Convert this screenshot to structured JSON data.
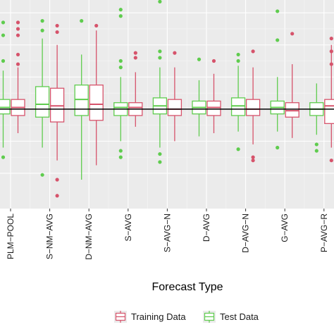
{
  "chart_data": {
    "type": "box",
    "title": "",
    "xlabel": "Forecast Type",
    "ylabel": "",
    "ylim": [
      -3.1,
      3.4
    ],
    "grid": true,
    "background": "#ebebeb",
    "reference_line": 0,
    "categories": [
      "PLM−POOL",
      "S−NM−AVG",
      "D−NM−AVG",
      "S−AVG",
      "S−AVG−N",
      "D−AVG",
      "D−AVG−N",
      "G−AVG",
      "P−AVG−R"
    ],
    "legend_position": "bottom",
    "series": [
      {
        "name": "Training Data",
        "color": "#d6536b",
        "boxes": [
          {
            "q1": -0.2,
            "median": 0.05,
            "q3": 0.3,
            "whisker_low": -0.75,
            "whisker_high": 1.3,
            "outliers": [
              2.7,
              2.5,
              2.3,
              1.7,
              1.4
            ]
          },
          {
            "q1": -0.4,
            "median": 0.1,
            "q3": 0.65,
            "whisker_low": -1.6,
            "whisker_high": 2.0,
            "outliers": [
              2.6,
              2.4,
              -2.2,
              -2.7
            ]
          },
          {
            "q1": -0.35,
            "median": 0.15,
            "q3": 0.75,
            "whisker_low": -1.75,
            "whisker_high": 2.45,
            "outliers": [
              2.6
            ]
          },
          {
            "q1": -0.2,
            "median": 0.05,
            "q3": 0.2,
            "whisker_low": -0.55,
            "whisker_high": 1.15,
            "outliers": [
              1.75,
              1.6
            ]
          },
          {
            "q1": -0.2,
            "median": 0.0,
            "q3": 0.3,
            "whisker_low": -1.0,
            "whisker_high": 1.3,
            "outliers": [
              1.75
            ]
          },
          {
            "q1": -0.2,
            "median": 0.05,
            "q3": 0.25,
            "whisker_low": -0.75,
            "whisker_high": 1.1,
            "outliers": [
              1.5
            ]
          },
          {
            "q1": -0.2,
            "median": 0.0,
            "q3": 0.3,
            "whisker_low": -1.1,
            "whisker_high": 1.3,
            "outliers": [
              1.8,
              -1.5,
              -1.6
            ]
          },
          {
            "q1": -0.25,
            "median": -0.05,
            "q3": 0.2,
            "whisker_low": -0.9,
            "whisker_high": 1.4,
            "outliers": [
              2.35
            ]
          },
          {
            "q1": -0.45,
            "median": 0.1,
            "q3": 0.3,
            "whisker_low": -1.2,
            "whisker_high": 2.0,
            "outliers": [
              2.2,
              1.8,
              1.4,
              -1.6
            ]
          }
        ]
      },
      {
        "name": "Test Data",
        "color": "#5fcc4e",
        "boxes": [
          {
            "q1": -0.15,
            "median": 0.05,
            "q3": 0.3,
            "whisker_low": -1.2,
            "whisker_high": 1.2,
            "outliers": [
              2.7,
              2.3,
              1.5,
              -1.5
            ]
          },
          {
            "q1": -0.25,
            "median": 0.15,
            "q3": 0.7,
            "whisker_low": -1.2,
            "whisker_high": 2.2,
            "outliers": [
              2.75,
              2.45,
              -2.05
            ]
          },
          {
            "q1": -0.2,
            "median": 0.3,
            "q3": 0.75,
            "whisker_low": -2.2,
            "whisker_high": 1.7,
            "outliers": [
              2.75
            ]
          },
          {
            "q1": -0.2,
            "median": 0.05,
            "q3": 0.2,
            "whisker_low": -1.0,
            "whisker_high": 1.0,
            "outliers": [
              3.1,
              2.9,
              1.5,
              1.3,
              -1.3,
              -1.5
            ]
          },
          {
            "q1": -0.15,
            "median": 0.1,
            "q3": 0.35,
            "whisker_low": -1.2,
            "whisker_high": 1.3,
            "outliers": [
              3.35,
              1.8,
              1.6,
              -1.4,
              -1.65
            ]
          },
          {
            "q1": -0.15,
            "median": 0.05,
            "q3": 0.25,
            "whisker_low": -0.85,
            "whisker_high": 0.9,
            "outliers": [
              1.55
            ]
          },
          {
            "q1": -0.2,
            "median": 0.1,
            "q3": 0.35,
            "whisker_low": -0.7,
            "whisker_high": 1.35,
            "outliers": [
              1.7,
              1.5,
              -1.25
            ]
          },
          {
            "q1": -0.15,
            "median": 0.05,
            "q3": 0.25,
            "whisker_low": -0.7,
            "whisker_high": 1.0,
            "outliers": [
              3.05,
              2.15,
              -1.2
            ]
          },
          {
            "q1": -0.2,
            "median": 0.0,
            "q3": 0.2,
            "whisker_low": -0.8,
            "whisker_high": 0.8,
            "outliers": [
              -1.1,
              -1.3
            ]
          }
        ]
      }
    ]
  }
}
